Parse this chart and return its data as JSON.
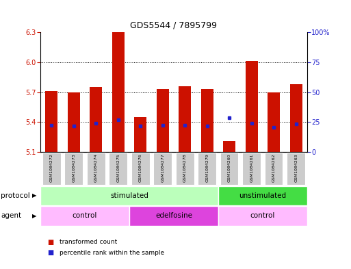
{
  "title": "GDS5544 / 7895799",
  "samples": [
    "GSM1084272",
    "GSM1084273",
    "GSM1084274",
    "GSM1084275",
    "GSM1084276",
    "GSM1084277",
    "GSM1084278",
    "GSM1084279",
    "GSM1084260",
    "GSM1084261",
    "GSM1084262",
    "GSM1084263"
  ],
  "bar_tops": [
    5.71,
    5.7,
    5.75,
    6.3,
    5.45,
    5.73,
    5.76,
    5.73,
    5.21,
    6.01,
    5.7,
    5.78
  ],
  "bar_bottoms": [
    5.1,
    5.1,
    5.1,
    5.1,
    5.1,
    5.1,
    5.1,
    5.1,
    5.1,
    5.1,
    5.1,
    5.1
  ],
  "blue_y": [
    5.37,
    5.36,
    5.39,
    5.42,
    5.36,
    5.37,
    5.37,
    5.36,
    5.44,
    5.39,
    5.35,
    5.38
  ],
  "ylim": [
    5.1,
    6.3
  ],
  "yticks_left": [
    5.1,
    5.4,
    5.7,
    6.0,
    6.3
  ],
  "yticks_right": [
    0,
    25,
    50,
    75,
    100
  ],
  "bar_color": "#cc1100",
  "blue_color": "#2222cc",
  "protocol_segments": [
    {
      "label": "stimulated",
      "start": 0,
      "end": 8,
      "color": "#bbffbb"
    },
    {
      "label": "unstimulated",
      "start": 8,
      "end": 12,
      "color": "#44dd44"
    }
  ],
  "agent_segments": [
    {
      "label": "control",
      "start": 0,
      "end": 4,
      "color": "#ffbbff"
    },
    {
      "label": "edelfosine",
      "start": 4,
      "end": 8,
      "color": "#dd44dd"
    },
    {
      "label": "control",
      "start": 8,
      "end": 12,
      "color": "#ffbbff"
    }
  ],
  "legend_items": [
    "transformed count",
    "percentile rank within the sample"
  ],
  "legend_colors": [
    "#cc1100",
    "#2222cc"
  ],
  "bg_color": "#ffffff",
  "left_tick_color": "#cc1100",
  "right_tick_color": "#2222cc",
  "sample_box_color": "#cccccc",
  "protocol_row_label": "protocol",
  "agent_row_label": "agent",
  "title_fontsize": 9,
  "tick_fontsize": 7,
  "label_fontsize": 7.5,
  "row_label_fontsize": 7.5
}
